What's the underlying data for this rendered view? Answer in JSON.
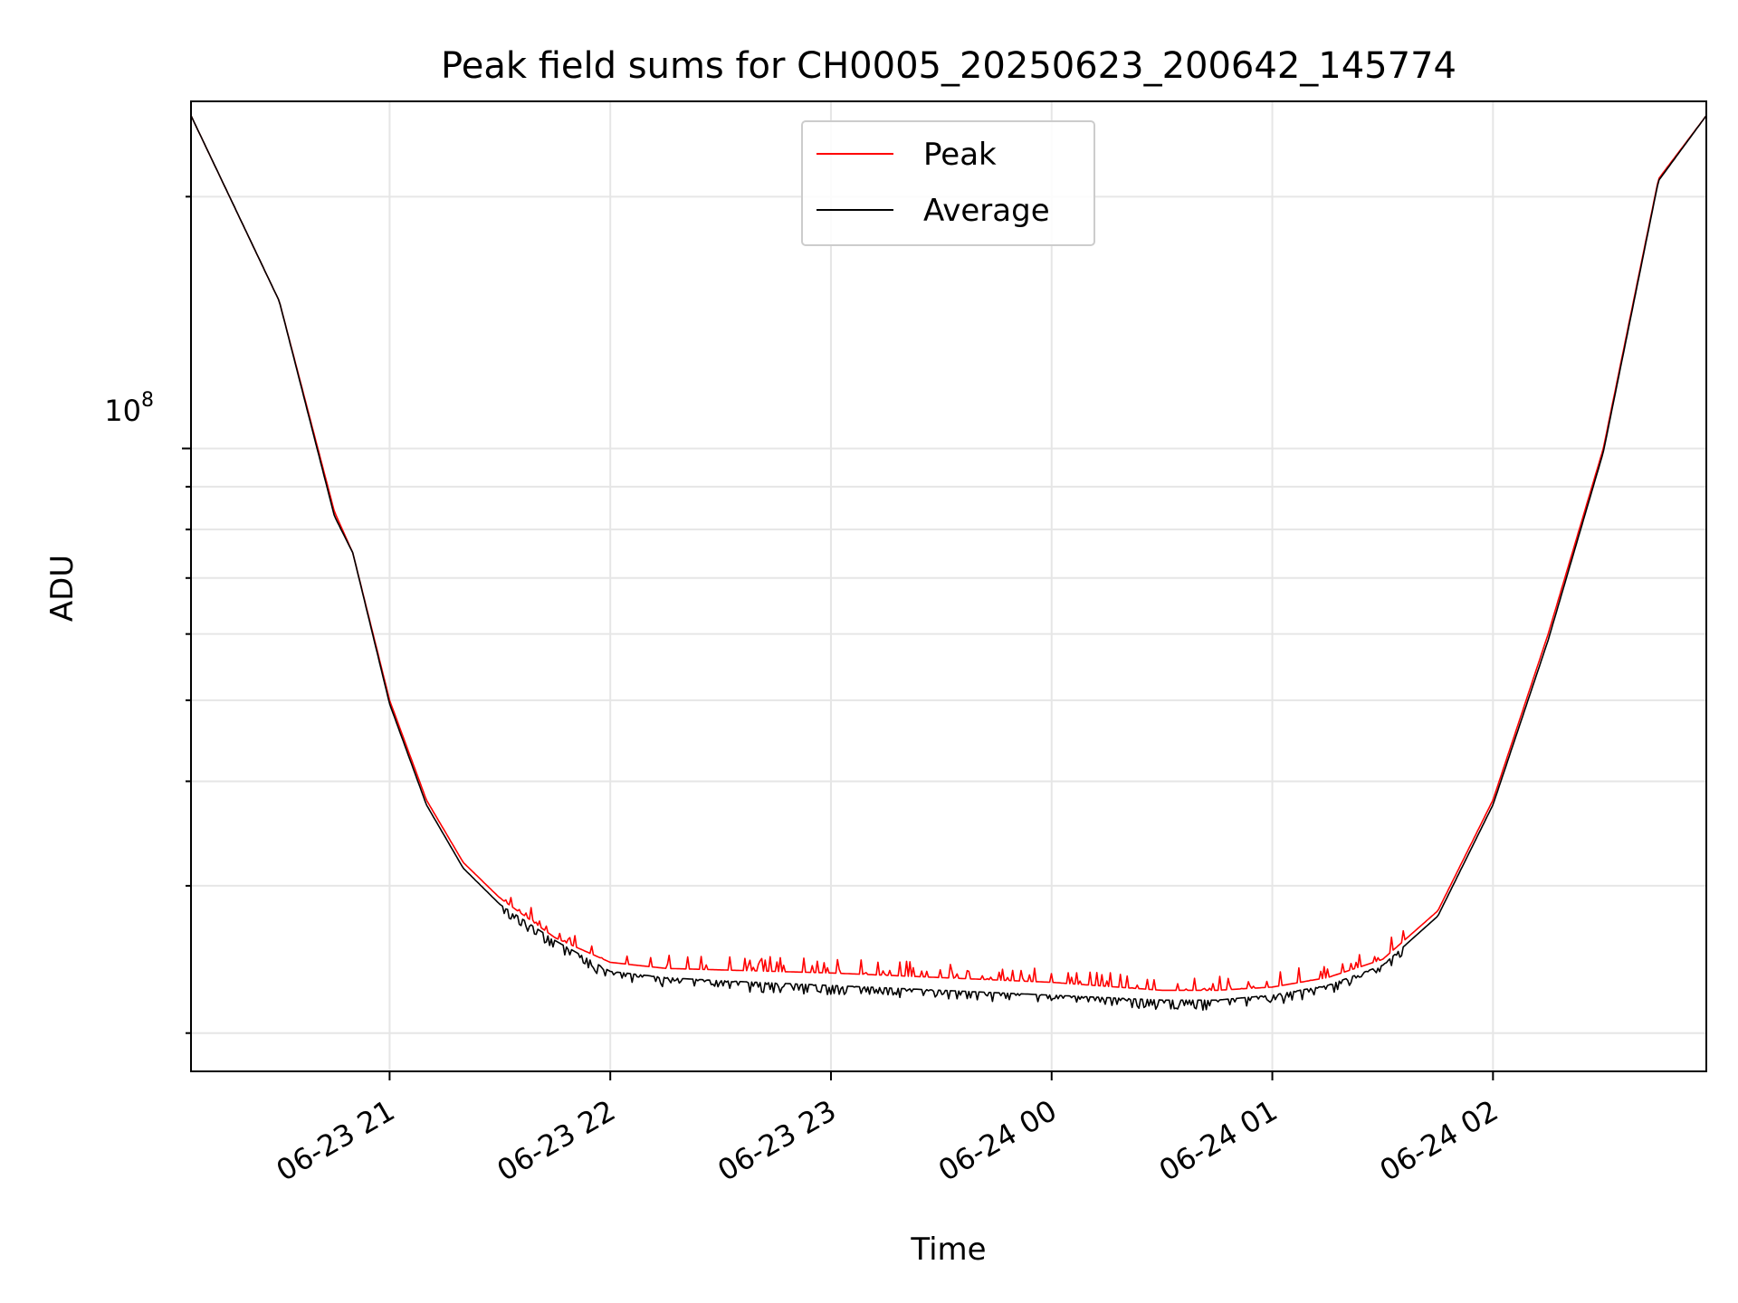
{
  "chart_data": {
    "type": "line",
    "title": "Peak field sums for CH0005_20250623_200642_145774",
    "xlabel": "Time",
    "ylabel": "ADU",
    "yscale": "log",
    "x_ticks": [
      "06-23 21",
      "06-23 22",
      "06-23 23",
      "06-24 00",
      "06-24 01",
      "06-24 02"
    ],
    "y_major_tick": {
      "value": 100000000,
      "base": "10",
      "exponent": "8"
    },
    "x_range": [
      "2025-06-23 20:06",
      "2025-06-24 02:58"
    ],
    "ylim": [
      18000000,
      260000000
    ],
    "grid": true,
    "legend_position": "upper center",
    "x": [
      "20:06",
      "20:30",
      "20:45",
      "20:50",
      "21:00",
      "21:10",
      "21:20",
      "21:30",
      "21:45",
      "22:00",
      "22:15",
      "22:30",
      "23:00",
      "23:30",
      "00:00",
      "00:30",
      "00:45",
      "01:00",
      "01:15",
      "01:30",
      "01:45",
      "02:00",
      "02:15",
      "02:30",
      "02:45",
      "02:58"
    ],
    "series": [
      {
        "name": "Peak",
        "color": "#ff0000",
        "values": [
          250000000,
          150000000,
          84000000,
          75000000,
          50000000,
          38000000,
          32000000,
          29000000,
          26000000,
          24300000,
          23900000,
          23800000,
          23600000,
          23300000,
          23000000,
          22500000,
          22500000,
          22700000,
          23300000,
          24500000,
          28000000,
          38000000,
          60000000,
          100000000,
          210000000,
          250000000
        ]
      },
      {
        "name": "Average",
        "color": "#000000",
        "values": [
          250000000,
          150000000,
          83000000,
          75000000,
          49500000,
          37500000,
          31500000,
          28500000,
          25800000,
          23700000,
          23300000,
          23100000,
          22800000,
          22500000,
          22200000,
          21900000,
          21900000,
          22200000,
          22800000,
          24100000,
          27600000,
          37500000,
          59000000,
          99000000,
          209000000,
          250000000
        ]
      }
    ]
  }
}
